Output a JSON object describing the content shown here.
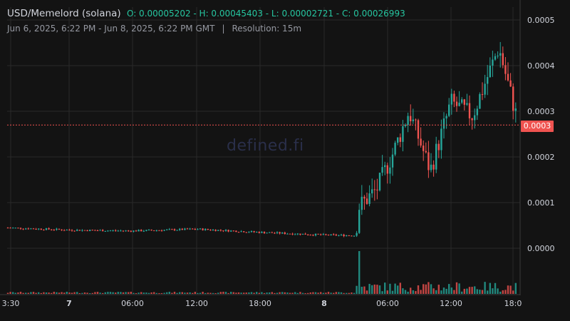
{
  "header": {
    "symbol": "USD/Memelord (solana)",
    "ohlc": "O: 0.00005202 - H: 0.00045403 - L: 0.00002721 - C: 0.00026993",
    "range": "Jun 6, 2025, 6:22 PM - Jun 8, 2025, 6:22 PM GMT",
    "separator": "|",
    "resolution": "Resolution: 15m"
  },
  "watermark": "defined.fi",
  "current_price_label": "0.0003",
  "colors": {
    "up": "#26a69a",
    "down": "#ef5350",
    "background": "#131313",
    "grid": "#2a2a2a"
  },
  "chart_data": {
    "type": "candlestick",
    "title": "USD/Memelord (solana)",
    "y_axis_ticks": [
      "0.0005",
      "0.0004",
      "0.0003",
      "0.0002",
      "0.0001",
      "0.0000"
    ],
    "ylim": [
      0.0,
      0.0005
    ],
    "x_axis_ticks": [
      "3:30",
      "7",
      "06:00",
      "12:00",
      "18:00",
      "8",
      "06:00",
      "12:00",
      "18:0"
    ],
    "current_price": 0.00026993,
    "ohlc": {
      "open": 5.202e-05,
      "high": 0.00045403,
      "low": 2.721e-05,
      "close": 0.00026993
    },
    "series": [
      {
        "name": "price",
        "approx_path": [
          {
            "t": "Jun 6 18:22",
            "value": 4.5e-05
          },
          {
            "t": "Jun 7 00:00",
            "value": 4e-05
          },
          {
            "t": "Jun 7 06:00",
            "value": 3.8e-05
          },
          {
            "t": "Jun 7 12:00",
            "value": 4.2e-05
          },
          {
            "t": "Jun 7 18:00",
            "value": 3.5e-05
          },
          {
            "t": "Jun 8 00:00",
            "value": 2.9e-05
          },
          {
            "t": "Jun 8 03:00",
            "value": 2.8e-05
          },
          {
            "t": "Jun 8 03:15",
            "value": 9e-05
          },
          {
            "t": "Jun 8 05:00",
            "value": 0.00013
          },
          {
            "t": "Jun 8 06:30",
            "value": 0.00021
          },
          {
            "t": "Jun 8 08:00",
            "value": 0.0003
          },
          {
            "t": "Jun 8 10:00",
            "value": 0.00017
          },
          {
            "t": "Jun 8 12:00",
            "value": 0.00032
          },
          {
            "t": "Jun 8 14:00",
            "value": 0.00029
          },
          {
            "t": "Jun 8 16:30",
            "value": 0.00044
          },
          {
            "t": "Jun 8 18:22",
            "value": 0.00027
          }
        ]
      }
    ]
  }
}
